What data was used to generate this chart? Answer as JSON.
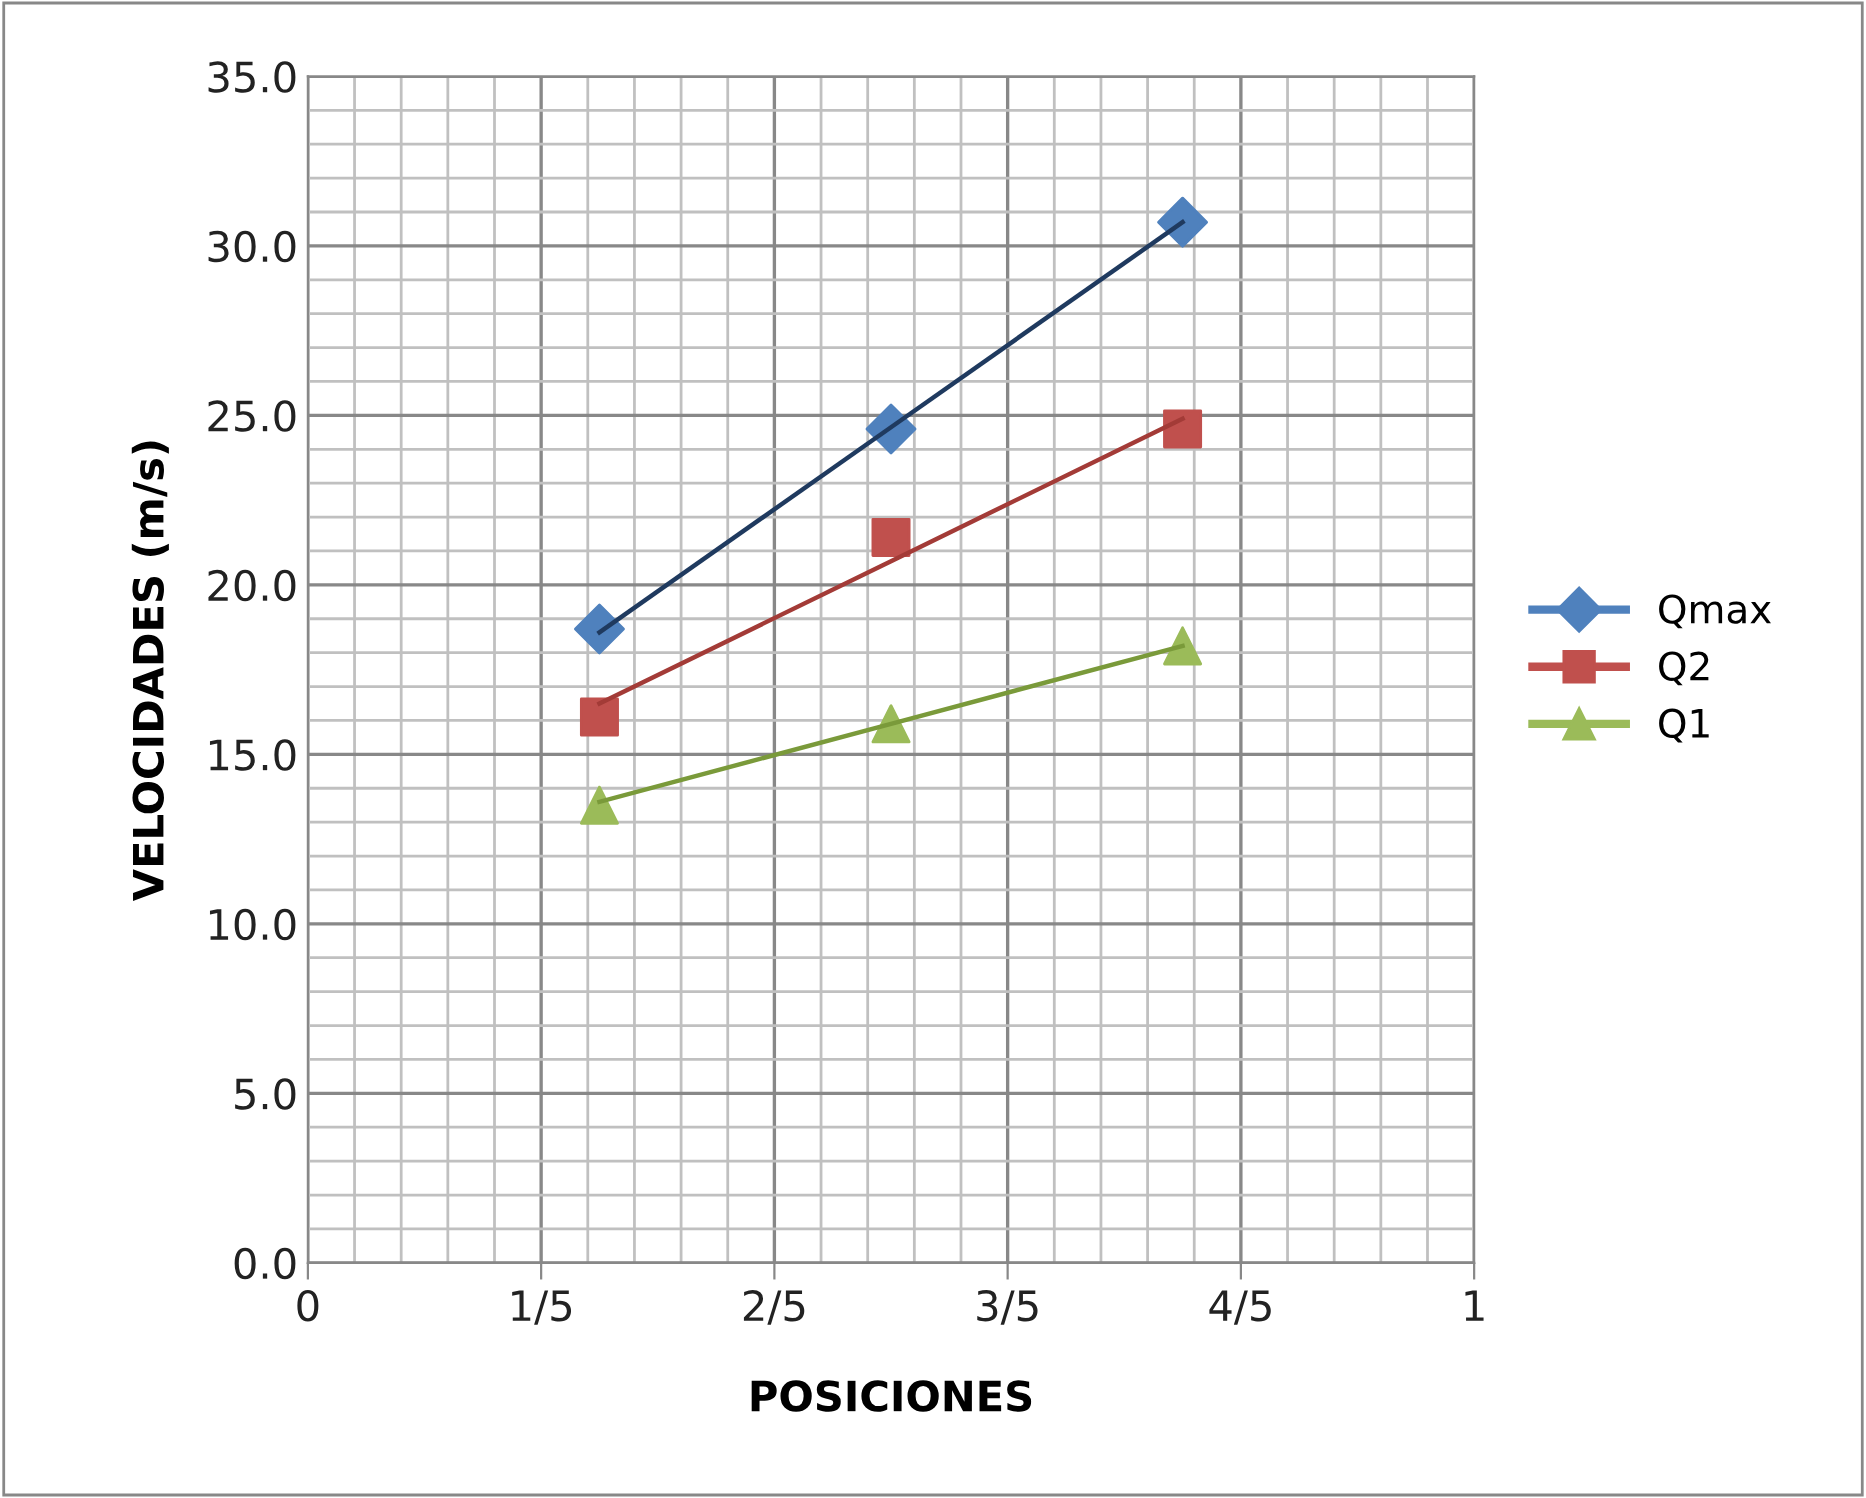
{
  "chart_data": {
    "type": "scatter",
    "xlabel": "POSICIONES",
    "ylabel": "VELOCIDADES (m/s)",
    "xlim": [
      0,
      1
    ],
    "xticks": [
      0,
      {
        "value": 0.2,
        "label": "1/5"
      },
      {
        "value": 0.4,
        "label": "2/5"
      },
      {
        "value": 0.6,
        "label": "3/5"
      },
      {
        "value": 0.8,
        "label": "4/5"
      },
      1
    ],
    "ylim": [
      0,
      35
    ],
    "yticks": [
      {
        "value": 0,
        "label": "0.0"
      },
      {
        "value": 5,
        "label": "5.0"
      },
      {
        "value": 10,
        "label": "10.0"
      },
      {
        "value": 15,
        "label": "15.0"
      },
      {
        "value": 20,
        "label": "20.0"
      },
      {
        "value": 25,
        "label": "25.0"
      },
      {
        "value": 30,
        "label": "30.0"
      },
      {
        "value": 35,
        "label": "35.0"
      }
    ],
    "grid": true,
    "legend": "right",
    "x": [
      0.25,
      0.5,
      0.75
    ],
    "series": [
      {
        "name": "Qmax",
        "color": "#4f81bd",
        "marker": "diamond",
        "values": [
          18.7,
          24.6,
          30.7
        ]
      },
      {
        "name": "Q2",
        "color": "#c0504d",
        "marker": "square",
        "values": [
          16.1,
          21.4,
          24.6
        ]
      },
      {
        "name": "Q1",
        "color": "#9bbb59",
        "marker": "triangle",
        "values": [
          13.5,
          15.9,
          18.2
        ]
      },
      {
        "type": "line",
        "color": "#1f3a5f",
        "marker": "none",
        "values": [
          18.6,
          24.65,
          30.7
        ]
      },
      {
        "type": "line",
        "color": "#a33b37",
        "marker": "none",
        "values": [
          16.5,
          20.7,
          24.9
        ]
      },
      {
        "type": "line",
        "color": "#7a9a3a",
        "marker": "none",
        "values": [
          13.6,
          15.9,
          18.2
        ]
      }
    ]
  }
}
